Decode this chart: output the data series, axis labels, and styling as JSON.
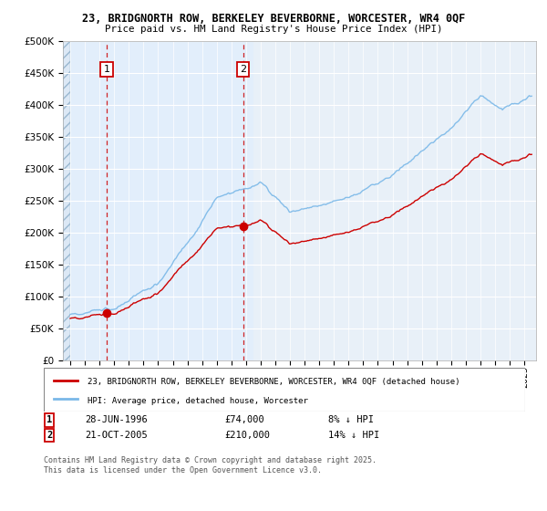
{
  "title1": "23, BRIDGNORTH ROW, BERKELEY BEVERBORNE, WORCESTER, WR4 0QF",
  "title2": "Price paid vs. HM Land Registry's House Price Index (HPI)",
  "legend_line1": "23, BRIDGNORTH ROW, BERKELEY BEVERBORNE, WORCESTER, WR4 0QF (detached house)",
  "legend_line2": "HPI: Average price, detached house, Worcester",
  "annotation1_date": "28-JUN-1996",
  "annotation1_price": "£74,000",
  "annotation1_hpi": "8% ↓ HPI",
  "annotation2_date": "21-OCT-2005",
  "annotation2_price": "£210,000",
  "annotation2_hpi": "14% ↓ HPI",
  "footer": "Contains HM Land Registry data © Crown copyright and database right 2025.\nThis data is licensed under the Open Government Licence v3.0.",
  "sale1_year": 1996.49,
  "sale1_value": 74000,
  "sale2_year": 2005.8,
  "sale2_value": 210000,
  "hpi_color": "#7ab8e8",
  "price_color": "#cc0000",
  "vline_color": "#cc0000",
  "ylim": [
    0,
    500000
  ],
  "xlim_start": 1993.5,
  "xlim_end": 2025.8
}
